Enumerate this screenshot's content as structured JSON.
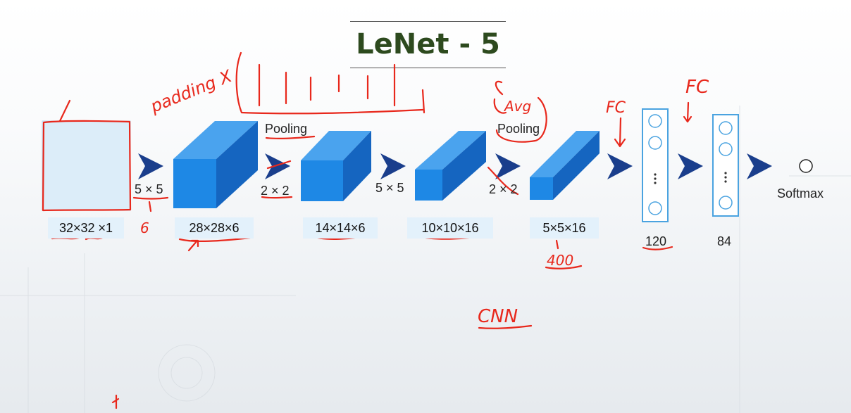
{
  "title": "LeNet - 5",
  "stages": {
    "input_dim": "32×32 ×1",
    "conv1_dim": "28×28×6",
    "pool1_dim": "14×14×6",
    "conv2_dim": "10×10×16",
    "pool2_dim": "5×5×16",
    "fc1_label": "120",
    "fc2_label": "84",
    "output_label": "Softmax"
  },
  "operations": {
    "conv1_kernel": "5 × 5",
    "pool1_size": "2 × 2",
    "pool1_label": "Pooling",
    "conv2_kernel": "5 × 5",
    "pool2_size": "2 × 2",
    "pool2_label": "Pooling"
  },
  "annotations": {
    "padding": "padding X",
    "avg": "Avg",
    "fc_left": "FC",
    "fc_right": "FC",
    "six": "6",
    "four_hundred": "400",
    "cnn": "CNN"
  },
  "colors": {
    "block_front": "#1e88e5",
    "block_top": "#4aa3ee",
    "block_side": "#1565c0",
    "arrow": "#1a3e8c",
    "fc_border": "#4aa3e0",
    "input_fill": "#dcedf9",
    "ink": "#e8281c",
    "title": "#2d4a1e"
  }
}
